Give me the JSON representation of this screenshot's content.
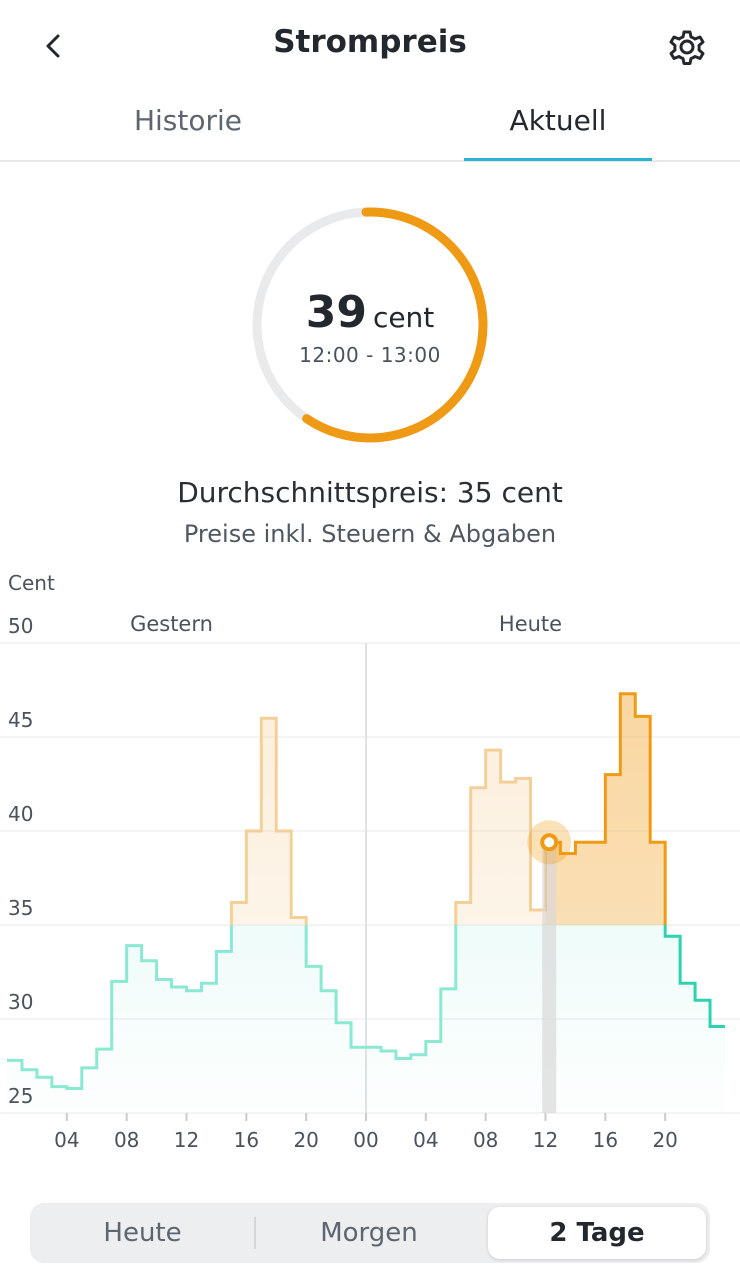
{
  "header": {
    "title": "Strompreis",
    "back_icon": "chevron-left-icon",
    "settings_icon": "gear-icon"
  },
  "tabs": [
    {
      "label": "Historie",
      "active": false
    },
    {
      "label": "Aktuell",
      "active": true
    }
  ],
  "current": {
    "value": "39",
    "unit": "cent",
    "time_range": "12:00 - 13:00",
    "ring_fraction": 0.6,
    "ring_color": "#ef9a14"
  },
  "average_label": "Durchschnittspreis: 35 cent",
  "tax_note": "Preise inkl. Steuern & Abgaben",
  "chart_data": {
    "type": "step-line",
    "ylabel": "Cent",
    "ylim": [
      25,
      50
    ],
    "yticks": [
      50,
      45,
      40,
      35,
      30,
      25
    ],
    "x_hours_range": [
      0,
      48
    ],
    "xtick_labels": [
      "04",
      "08",
      "12",
      "16",
      "20",
      "00",
      "04",
      "08",
      "12",
      "16",
      "20"
    ],
    "day_labels": [
      "Gestern",
      "Heute"
    ],
    "average": 35,
    "current_hour": 36,
    "current_value": 39.4,
    "colors": {
      "below_avg": "#2ed3ad",
      "above_avg": "#ef9a14",
      "above_avg_past": "#f5cf98",
      "below_avg_past": "#8be8d2"
    },
    "series": [
      27.8,
      27.3,
      26.9,
      26.4,
      26.3,
      27.4,
      28.4,
      32.0,
      33.9,
      33.1,
      32.1,
      31.7,
      31.5,
      31.9,
      33.6,
      36.2,
      40.0,
      46.0,
      40.0,
      35.4,
      32.8,
      31.5,
      29.8,
      28.5,
      28.5,
      28.3,
      27.9,
      28.1,
      28.8,
      31.6,
      36.2,
      42.3,
      44.3,
      42.6,
      42.8,
      35.8,
      39.4,
      38.8,
      39.4,
      39.4,
      43.0,
      47.3,
      46.1,
      39.4,
      34.4,
      31.9,
      31.0,
      29.6
    ]
  },
  "segment": [
    {
      "label": "Heute",
      "active": false
    },
    {
      "label": "Morgen",
      "active": false
    },
    {
      "label": "2 Tage",
      "active": true
    }
  ]
}
